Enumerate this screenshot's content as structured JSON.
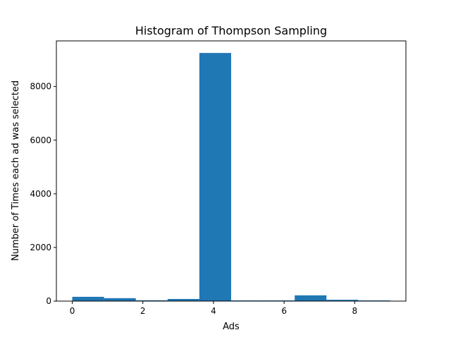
{
  "chart_data": {
    "type": "bar",
    "title": "Histogram of Thompson Sampling",
    "xlabel": "Ads",
    "ylabel": "Number of Times each ad was selected",
    "xlim": [
      -0.45,
      9.45
    ],
    "ylim": [
      0,
      9700
    ],
    "xticks": [
      0,
      2,
      4,
      6,
      8
    ],
    "yticks": [
      0,
      2000,
      4000,
      6000,
      8000
    ],
    "grid": false,
    "legend": "none",
    "bar_color": "#1f77b4",
    "bins": [
      {
        "start": 0.0,
        "end": 0.9,
        "count": 160
      },
      {
        "start": 0.9,
        "end": 1.8,
        "count": 110
      },
      {
        "start": 1.8,
        "end": 2.7,
        "count": 30
      },
      {
        "start": 2.7,
        "end": 3.6,
        "count": 80
      },
      {
        "start": 3.6,
        "end": 4.5,
        "count": 9250
      },
      {
        "start": 4.5,
        "end": 5.4,
        "count": 25
      },
      {
        "start": 5.4,
        "end": 6.3,
        "count": 25
      },
      {
        "start": 6.3,
        "end": 7.2,
        "count": 215
      },
      {
        "start": 7.2,
        "end": 8.1,
        "count": 50
      },
      {
        "start": 8.1,
        "end": 9.0,
        "count": 25
      }
    ]
  }
}
